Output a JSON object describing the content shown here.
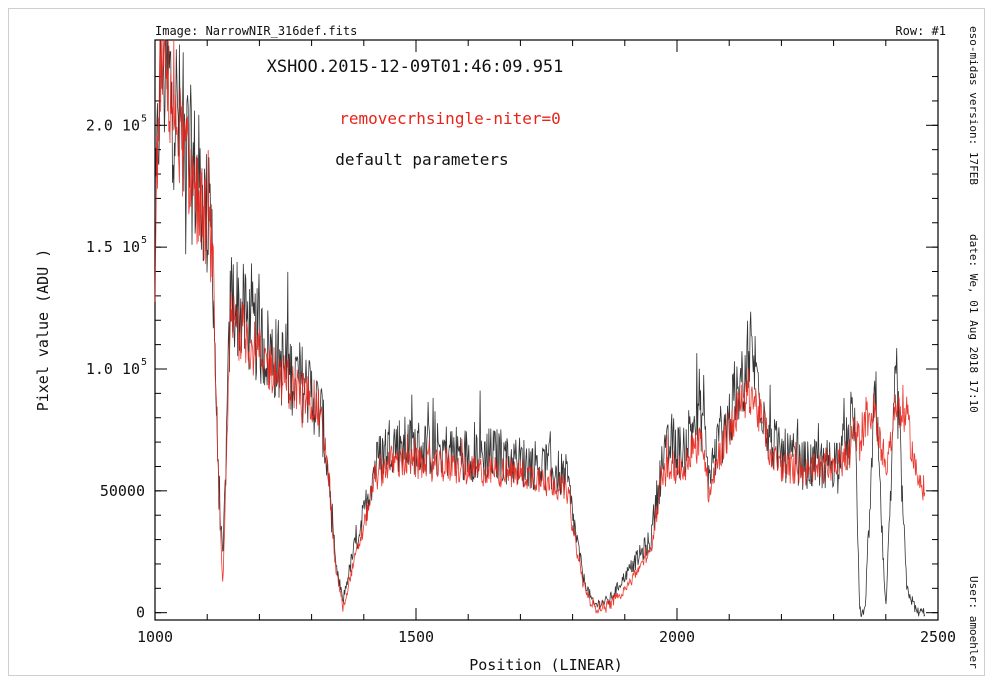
{
  "header": {
    "image_label": "Image: NarrowNIR_316def.fits",
    "row_label": "Row: #1"
  },
  "side_notes": {
    "version": "eso-midas version: 17FEB",
    "date": "date: We, 01 Aug 2018  17:10",
    "user": "User: amoehler"
  },
  "colors": {
    "default_series": "#111111",
    "niter_series": "#e8231a",
    "axes": "#000000",
    "background": "#ffffff"
  },
  "chart_data": {
    "type": "line",
    "title": "XSHOO.2015-12-09T01:46:09.951",
    "xlabel": "Position (LINEAR)",
    "ylabel": "Pixel value (ADU )",
    "xlim": [
      1000,
      2500
    ],
    "ylim": [
      -3000,
      235000
    ],
    "x_ticks": [
      1000,
      1500,
      2000,
      2500
    ],
    "y_ticks": [
      {
        "value": 0,
        "label": "0"
      },
      {
        "value": 50000,
        "label": "50000"
      },
      {
        "value": 100000,
        "label": "1.0 10",
        "exp": "5"
      },
      {
        "value": 150000,
        "label": "1.5 10",
        "exp": "5"
      },
      {
        "value": 200000,
        "label": "2.0 10",
        "exp": "5"
      }
    ],
    "grid": false,
    "legend": "top-center text labels",
    "series": [
      {
        "name": "default parameters",
        "color": "#111111",
        "x": [
          1000,
          1010,
          1030,
          1060,
          1090,
          1110,
          1120,
          1130,
          1145,
          1160,
          1200,
          1250,
          1280,
          1300,
          1320,
          1335,
          1345,
          1360,
          1380,
          1400,
          1420,
          1450,
          1500,
          1550,
          1600,
          1650,
          1700,
          1750,
          1790,
          1800,
          1820,
          1840,
          1870,
          1900,
          1950,
          1970,
          1990,
          2010,
          2030,
          2050,
          2060,
          2080,
          2100,
          2120,
          2140,
          2160,
          2180,
          2200,
          2250,
          2300,
          2330,
          2340,
          2350,
          2360,
          2380,
          2400,
          2420,
          2440,
          2460,
          2475
        ],
        "y": [
          150000,
          228000,
          215000,
          190000,
          170000,
          155000,
          60000,
          20000,
          130000,
          125000,
          112000,
          100000,
          95000,
          90000,
          80000,
          50000,
          20000,
          5000,
          25000,
          40000,
          60000,
          70000,
          68000,
          67000,
          65000,
          65000,
          62000,
          60000,
          55000,
          40000,
          15000,
          3000,
          5000,
          15000,
          30000,
          60000,
          70000,
          65000,
          78000,
          80000,
          55000,
          70000,
          80000,
          90000,
          110000,
          90000,
          70000,
          65000,
          60000,
          62000,
          70000,
          85000,
          0,
          0,
          90000,
          0,
          100000,
          10000,
          0,
          0
        ]
      },
      {
        "name": "removecrhsingle-niter=0",
        "color": "#e8231a",
        "x": [
          1000,
          1010,
          1030,
          1060,
          1090,
          1110,
          1120,
          1130,
          1145,
          1160,
          1200,
          1250,
          1280,
          1300,
          1320,
          1335,
          1345,
          1360,
          1380,
          1400,
          1420,
          1450,
          1500,
          1550,
          1600,
          1650,
          1700,
          1750,
          1790,
          1800,
          1820,
          1840,
          1870,
          1900,
          1950,
          1970,
          1990,
          2010,
          2030,
          2050,
          2060,
          2080,
          2100,
          2120,
          2140,
          2160,
          2180,
          2200,
          2250,
          2300,
          2330,
          2340,
          2350,
          2360,
          2380,
          2400,
          2420,
          2440,
          2460,
          2475
        ],
        "y": [
          140000,
          230000,
          212000,
          185000,
          165000,
          150000,
          60000,
          10000,
          120000,
          118000,
          105000,
          95000,
          90000,
          88000,
          80000,
          50000,
          20000,
          2000,
          20000,
          35000,
          55000,
          62000,
          61000,
          60000,
          58000,
          58000,
          57000,
          55000,
          50000,
          35000,
          12000,
          2000,
          3000,
          10000,
          25000,
          55000,
          60000,
          58000,
          68000,
          70000,
          50000,
          65000,
          75000,
          85000,
          92000,
          80000,
          65000,
          60000,
          58000,
          60000,
          65000,
          75000,
          70000,
          80000,
          82000,
          60000,
          83000,
          80000,
          55000,
          50000
        ]
      }
    ]
  }
}
